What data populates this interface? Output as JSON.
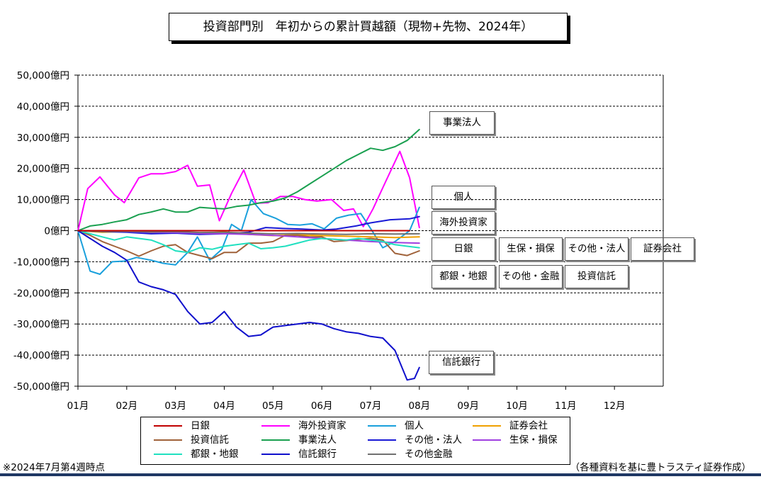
{
  "title": "投資部門別　年初からの累計買越額（現物+先物、2024年）",
  "footnote": "※2024年7月第4週時点",
  "source": "（各種資料を基に豊トラスティ証券作成）",
  "chart_data": {
    "type": "line",
    "title": "投資部門別　年初からの累計買越額（現物+先物、2024年）",
    "xlabel": "",
    "ylabel": "",
    "ylim": [
      -50000,
      50000
    ],
    "y_ticks": [
      50000,
      40000,
      30000,
      20000,
      10000,
      0,
      -10000,
      -20000,
      -30000,
      -40000,
      -50000
    ],
    "y_tick_labels": [
      "50,000億円",
      "40,000億円",
      "30,000億円",
      "20,000億円",
      "10,000億円",
      "0億円",
      "-10,000億円",
      "-20,000億円",
      "-30,000億円",
      "-40,000億円",
      "-50,000億円"
    ],
    "x_tick_labels": [
      "01月",
      "02月",
      "03月",
      "04月",
      "05月",
      "06月",
      "07月",
      "08月",
      "09月",
      "10月",
      "11月",
      "12月"
    ],
    "grid": true,
    "legend_position": "bottom",
    "series": [
      {
        "name": "日銀",
        "color": "#c00000",
        "width": 2,
        "points": [
          [
            1.0,
            0
          ],
          [
            1.25,
            0
          ],
          [
            1.5,
            0
          ],
          [
            1.75,
            0
          ],
          [
            2.0,
            0
          ],
          [
            2.25,
            0
          ],
          [
            2.5,
            0
          ],
          [
            2.75,
            0
          ],
          [
            3.0,
            0
          ],
          [
            3.5,
            0
          ],
          [
            4.0,
            0
          ],
          [
            4.5,
            0
          ],
          [
            5.0,
            0
          ],
          [
            5.5,
            0
          ],
          [
            6.0,
            0
          ],
          [
            6.5,
            0
          ],
          [
            7.0,
            0
          ],
          [
            7.5,
            0
          ],
          [
            7.8,
            0
          ]
        ]
      },
      {
        "name": "海外投資家",
        "color": "#ff00ff",
        "width": 2,
        "points": [
          [
            1.0,
            0
          ],
          [
            1.2,
            13500
          ],
          [
            1.45,
            17300
          ],
          [
            1.75,
            11500
          ],
          [
            1.95,
            9000
          ],
          [
            2.25,
            17000
          ],
          [
            2.5,
            18300
          ],
          [
            2.75,
            18300
          ],
          [
            3.0,
            19000
          ],
          [
            3.25,
            21000
          ],
          [
            3.45,
            14300
          ],
          [
            3.7,
            14700
          ],
          [
            3.9,
            3200
          ],
          [
            4.15,
            12000
          ],
          [
            4.4,
            19500
          ],
          [
            4.65,
            8800
          ],
          [
            4.9,
            9000
          ],
          [
            5.15,
            11000
          ],
          [
            5.4,
            11000
          ],
          [
            5.65,
            10000
          ],
          [
            5.9,
            9500
          ],
          [
            6.2,
            10000
          ],
          [
            6.45,
            6500
          ],
          [
            6.65,
            7000
          ],
          [
            6.85,
            1300
          ],
          [
            7.05,
            7000
          ],
          [
            7.3,
            15500
          ],
          [
            7.6,
            25500
          ],
          [
            7.8,
            17000
          ],
          [
            8.0,
            1000
          ]
        ]
      },
      {
        "name": "個人",
        "color": "#1aa0dc",
        "width": 2,
        "points": [
          [
            1.0,
            0
          ],
          [
            1.25,
            -13000
          ],
          [
            1.45,
            -14000
          ],
          [
            1.7,
            -10000
          ],
          [
            1.95,
            -9800
          ],
          [
            2.2,
            -8600
          ],
          [
            2.5,
            -9500
          ],
          [
            2.75,
            -10500
          ],
          [
            3.0,
            -11000
          ],
          [
            3.25,
            -7000
          ],
          [
            3.45,
            -2000
          ],
          [
            3.7,
            -9500
          ],
          [
            3.95,
            -6000
          ],
          [
            4.15,
            2000
          ],
          [
            4.35,
            0
          ],
          [
            4.55,
            10000
          ],
          [
            4.8,
            5500
          ],
          [
            5.05,
            4000
          ],
          [
            5.3,
            2000
          ],
          [
            5.55,
            1800
          ],
          [
            5.8,
            2200
          ],
          [
            6.05,
            600
          ],
          [
            6.3,
            4000
          ],
          [
            6.55,
            5000
          ],
          [
            6.8,
            5500
          ],
          [
            7.05,
            -500
          ],
          [
            7.25,
            -5500
          ],
          [
            7.5,
            -3500
          ],
          [
            7.8,
            0
          ],
          [
            8.0,
            7500
          ]
        ]
      },
      {
        "name": "証券会社",
        "color": "#f0a000",
        "width": 2,
        "points": [
          [
            1.0,
            0
          ],
          [
            1.5,
            -500
          ],
          [
            2.0,
            -300
          ],
          [
            2.5,
            -600
          ],
          [
            3.0,
            -500
          ],
          [
            3.5,
            -800
          ],
          [
            4.0,
            -400
          ],
          [
            4.5,
            -1200
          ],
          [
            5.0,
            -1600
          ],
          [
            5.5,
            -1300
          ],
          [
            6.0,
            -1600
          ],
          [
            6.5,
            -1800
          ],
          [
            7.0,
            -2000
          ],
          [
            7.5,
            -2200
          ],
          [
            8.0,
            -2000
          ]
        ]
      },
      {
        "name": "投資信託",
        "color": "#a0623a",
        "width": 2,
        "points": [
          [
            1.0,
            0
          ],
          [
            1.25,
            -1500
          ],
          [
            1.5,
            -3500
          ],
          [
            1.75,
            -5000
          ],
          [
            2.0,
            -6500
          ],
          [
            2.25,
            -8200
          ],
          [
            2.5,
            -6500
          ],
          [
            2.75,
            -5000
          ],
          [
            3.0,
            -4500
          ],
          [
            3.25,
            -7000
          ],
          [
            3.5,
            -8000
          ],
          [
            3.75,
            -9000
          ],
          [
            4.0,
            -7000
          ],
          [
            4.25,
            -7000
          ],
          [
            4.5,
            -4000
          ],
          [
            4.75,
            -4000
          ],
          [
            5.0,
            -3500
          ],
          [
            5.25,
            -1500
          ],
          [
            5.5,
            -1500
          ],
          [
            5.75,
            -2000
          ],
          [
            6.0,
            -2000
          ],
          [
            6.25,
            -3500
          ],
          [
            6.5,
            -3200
          ],
          [
            6.75,
            -2800
          ],
          [
            7.0,
            -2500
          ],
          [
            7.25,
            -3000
          ],
          [
            7.5,
            -7300
          ],
          [
            7.75,
            -8000
          ],
          [
            8.0,
            -6500
          ]
        ]
      },
      {
        "name": "事業法人",
        "color": "#1aa050",
        "width": 2,
        "points": [
          [
            1.0,
            0
          ],
          [
            1.25,
            1500
          ],
          [
            1.5,
            2000
          ],
          [
            1.75,
            2800
          ],
          [
            2.0,
            3500
          ],
          [
            2.25,
            5200
          ],
          [
            2.5,
            6000
          ],
          [
            2.75,
            7000
          ],
          [
            3.0,
            6000
          ],
          [
            3.25,
            6000
          ],
          [
            3.5,
            7500
          ],
          [
            3.75,
            7200
          ],
          [
            4.0,
            7000
          ],
          [
            4.25,
            7800
          ],
          [
            4.5,
            8200
          ],
          [
            4.75,
            9000
          ],
          [
            5.0,
            9500
          ],
          [
            5.25,
            10500
          ],
          [
            5.5,
            12500
          ],
          [
            5.75,
            15000
          ],
          [
            6.0,
            17500
          ],
          [
            6.25,
            20000
          ],
          [
            6.5,
            22500
          ],
          [
            6.75,
            24500
          ],
          [
            7.0,
            26500
          ],
          [
            7.25,
            25800
          ],
          [
            7.5,
            27000
          ],
          [
            7.75,
            29000
          ],
          [
            8.0,
            32500
          ]
        ]
      },
      {
        "name": "その他・法人",
        "color": "#1a1ad6",
        "width": 2,
        "points": [
          [
            1.0,
            0
          ],
          [
            1.5,
            -300
          ],
          [
            2.0,
            -500
          ],
          [
            2.5,
            -1000
          ],
          [
            3.0,
            -800
          ],
          [
            3.5,
            -1200
          ],
          [
            4.0,
            -1000
          ],
          [
            4.5,
            -500
          ],
          [
            4.85,
            1000
          ],
          [
            5.2,
            700
          ],
          [
            5.6,
            500
          ],
          [
            6.0,
            200
          ],
          [
            6.3,
            500
          ],
          [
            6.7,
            1500
          ],
          [
            7.0,
            2500
          ],
          [
            7.4,
            3500
          ],
          [
            7.8,
            3800
          ],
          [
            8.0,
            4500
          ]
        ]
      },
      {
        "name": "生保・損保",
        "color": "#a040e0",
        "width": 2,
        "points": [
          [
            1.0,
            0
          ],
          [
            1.5,
            -200
          ],
          [
            2.0,
            -300
          ],
          [
            2.5,
            -500
          ],
          [
            3.0,
            -600
          ],
          [
            3.5,
            -900
          ],
          [
            4.0,
            -1000
          ],
          [
            4.5,
            -1200
          ],
          [
            5.0,
            -1500
          ],
          [
            5.5,
            -2000
          ],
          [
            6.0,
            -2500
          ],
          [
            6.5,
            -3000
          ],
          [
            7.0,
            -3500
          ],
          [
            7.5,
            -3800
          ],
          [
            8.0,
            -4000
          ]
        ]
      },
      {
        "name": "都銀・地銀",
        "color": "#20e0c0",
        "width": 2,
        "points": [
          [
            1.0,
            0
          ],
          [
            1.25,
            -1000
          ],
          [
            1.5,
            -2000
          ],
          [
            1.75,
            -3000
          ],
          [
            2.0,
            -2000
          ],
          [
            2.25,
            -2500
          ],
          [
            2.5,
            -3000
          ],
          [
            2.75,
            -4500
          ],
          [
            3.0,
            -6500
          ],
          [
            3.25,
            -7000
          ],
          [
            3.5,
            -5500
          ],
          [
            3.75,
            -6000
          ],
          [
            4.0,
            -5000
          ],
          [
            4.25,
            -4500
          ],
          [
            4.5,
            -4000
          ],
          [
            4.75,
            -5800
          ],
          [
            5.0,
            -5500
          ],
          [
            5.25,
            -5000
          ],
          [
            5.5,
            -4000
          ],
          [
            5.75,
            -3000
          ],
          [
            6.0,
            -2500
          ],
          [
            6.25,
            -2800
          ],
          [
            6.5,
            -3000
          ],
          [
            6.75,
            -2500
          ],
          [
            7.0,
            -3000
          ],
          [
            7.25,
            -3500
          ],
          [
            7.5,
            -4500
          ],
          [
            7.75,
            -5000
          ],
          [
            8.0,
            -5500
          ]
        ]
      },
      {
        "name": "信託銀行",
        "color": "#1010cc",
        "width": 2,
        "points": [
          [
            1.0,
            0
          ],
          [
            1.25,
            -2500
          ],
          [
            1.5,
            -5000
          ],
          [
            1.75,
            -7000
          ],
          [
            2.0,
            -9500
          ],
          [
            2.25,
            -16500
          ],
          [
            2.5,
            -18000
          ],
          [
            2.75,
            -19000
          ],
          [
            3.0,
            -20500
          ],
          [
            3.25,
            -26000
          ],
          [
            3.5,
            -30000
          ],
          [
            3.75,
            -29500
          ],
          [
            4.0,
            -26000
          ],
          [
            4.25,
            -31000
          ],
          [
            4.5,
            -34000
          ],
          [
            4.75,
            -33500
          ],
          [
            5.0,
            -31000
          ],
          [
            5.25,
            -30500
          ],
          [
            5.5,
            -30000
          ],
          [
            5.75,
            -29500
          ],
          [
            6.0,
            -30000
          ],
          [
            6.25,
            -31500
          ],
          [
            6.5,
            -32500
          ],
          [
            6.75,
            -33000
          ],
          [
            7.0,
            -34000
          ],
          [
            7.25,
            -34500
          ],
          [
            7.5,
            -38500
          ],
          [
            7.75,
            -48000
          ],
          [
            7.9,
            -47500
          ],
          [
            8.0,
            -44000
          ]
        ]
      },
      {
        "name": "その他金融",
        "color": "#707070",
        "width": 2,
        "points": [
          [
            1.0,
            0
          ],
          [
            1.5,
            -300
          ],
          [
            2.0,
            -200
          ],
          [
            2.5,
            -400
          ],
          [
            3.0,
            -300
          ],
          [
            3.5,
            -600
          ],
          [
            4.0,
            -500
          ],
          [
            4.5,
            -800
          ],
          [
            5.0,
            -1000
          ],
          [
            5.5,
            -900
          ],
          [
            6.0,
            -1100
          ],
          [
            6.5,
            -1200
          ],
          [
            7.0,
            -1000
          ],
          [
            7.5,
            -1100
          ],
          [
            8.0,
            -1000
          ]
        ]
      }
    ],
    "annotations": [
      {
        "id": "jigyo",
        "text": "事業法人",
        "bg": "#d2f5d2"
      },
      {
        "id": "kojin",
        "text": "個人",
        "bg": "#d2f8fa"
      },
      {
        "id": "kaigai",
        "text": "海外投資家",
        "bg": "#f8d2f8"
      },
      {
        "id": "nichigin",
        "text": "日銀",
        "bg": "#f0648c"
      },
      {
        "id": "seiho",
        "text": "生保・損保",
        "bg": "#ddd0f5"
      },
      {
        "id": "sonota-hojin",
        "text": "その他・法人",
        "bg": "#6b8ef0"
      },
      {
        "id": "shoken",
        "text": "証券会社",
        "bg": "#fde79c"
      },
      {
        "id": "togin",
        "text": "都銀・地銀",
        "bg": "#14e6b4"
      },
      {
        "id": "sonota-kinyu",
        "text": "その他・金融",
        "bg": "#dcdcdc"
      },
      {
        "id": "toshin",
        "text": "投資信託",
        "bg": "#c8960c"
      },
      {
        "id": "shintaku",
        "text": "信託銀行",
        "bg": "#14b4f0"
      }
    ]
  }
}
